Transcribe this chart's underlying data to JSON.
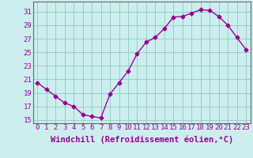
{
  "x": [
    0,
    1,
    2,
    3,
    4,
    5,
    6,
    7,
    8,
    9,
    10,
    11,
    12,
    13,
    14,
    15,
    16,
    17,
    18,
    19,
    20,
    21,
    22,
    23
  ],
  "y": [
    20.5,
    19.5,
    18.5,
    17.5,
    17.0,
    15.8,
    15.5,
    15.3,
    18.8,
    20.5,
    22.2,
    24.8,
    26.5,
    27.2,
    28.5,
    30.2,
    30.3,
    30.8,
    31.3,
    31.2,
    30.3,
    29.0,
    27.2,
    25.4
  ],
  "line_color": "#990099",
  "marker": "D",
  "markersize": 2.5,
  "bg_color": "#cceeee",
  "grid_color": "#99cccc",
  "xlabel": "Windchill (Refroidissement éolien,°C)",
  "xlim": [
    -0.5,
    23.5
  ],
  "ylim": [
    14.5,
    32.5
  ],
  "yticks": [
    15,
    17,
    19,
    21,
    23,
    25,
    27,
    29,
    31
  ],
  "xticks": [
    0,
    1,
    2,
    3,
    4,
    5,
    6,
    7,
    8,
    9,
    10,
    11,
    12,
    13,
    14,
    15,
    16,
    17,
    18,
    19,
    20,
    21,
    22,
    23
  ],
  "tick_color": "#990099",
  "label_color": "#990099",
  "spine_color": "#666666",
  "font_size": 6.5,
  "xlabel_fontsize": 7.5
}
